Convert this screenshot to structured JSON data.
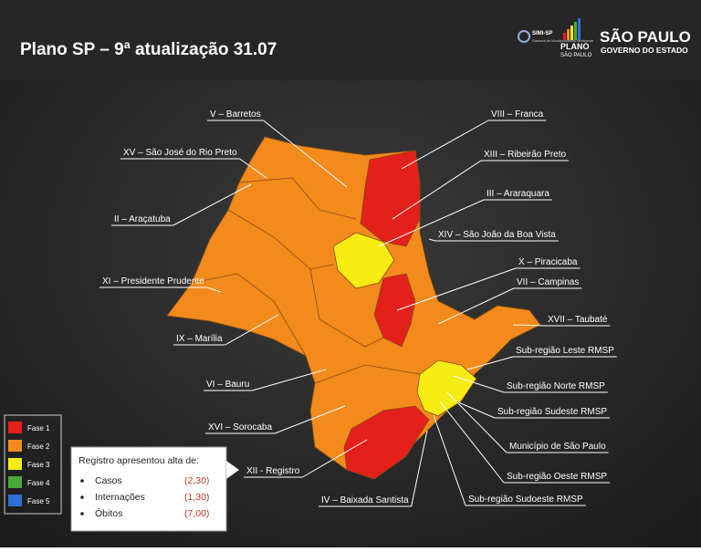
{
  "header": {
    "title": "Plano SP – 9ª atualização 31.07",
    "logos": {
      "simi": "SIMI-SP",
      "simi_sub": "Sistema de Monitoramento Inteligente",
      "plano": "PLANO",
      "plano_sub": "SÃO PAULO",
      "gov": "SÃO PAULO",
      "gov_sub": "GOVERNO DO ESTADO"
    }
  },
  "regions": [
    "V – Barretos",
    "XV – São José do Rio Preto",
    "II – Araçatuba",
    "XI – Presidente Prudente",
    "IX – Marília",
    "VI – Bauru",
    "XVI – Sorocaba",
    "XII - Registro",
    "IV – Baixada Santista",
    "VIII – Franca",
    "XIII – Ribeirão Preto",
    "III – Araraquara",
    "XIV – São João da Boa Vista",
    "X – Piracicaba",
    "VII – Campinas",
    "XVII – Taubaté",
    "Sub-região Leste RMSP",
    "Sub-região Norte RMSP",
    "Sub-região Sudeste RMSP",
    "Município de São Paulo",
    "Sub-região Oeste RMSP",
    "Sub-região Sudoeste RMSP"
  ],
  "legend": {
    "items": [
      {
        "label": "Fase 1",
        "color": "#e3201b"
      },
      {
        "label": "Fase 2",
        "color": "#f28a1c"
      },
      {
        "label": "Fase 3",
        "color": "#f4ec12"
      },
      {
        "label": "Fase 4",
        "color": "#4aa83a"
      },
      {
        "label": "Fase 5",
        "color": "#2d6fd3"
      }
    ]
  },
  "note": {
    "title": "Registro apresentou alta de:",
    "items": [
      {
        "label": "Casos",
        "value": "(2,30)"
      },
      {
        "label": "Internações",
        "value": "(1,30)"
      },
      {
        "label": "Óbitos",
        "value": "(7,00)"
      }
    ]
  }
}
